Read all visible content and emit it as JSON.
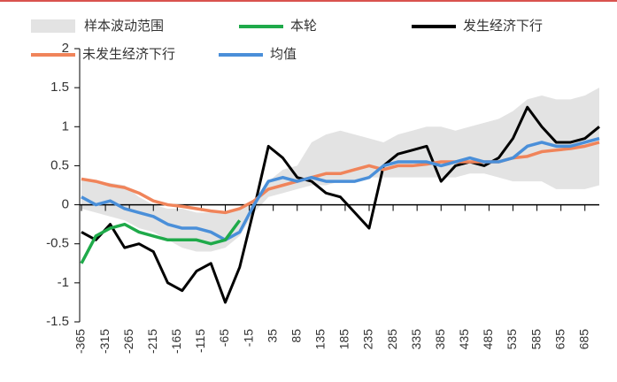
{
  "chart_data": {
    "type": "line",
    "x": [
      -365,
      -335,
      -305,
      -275,
      -245,
      -215,
      -185,
      -155,
      -125,
      -95,
      -65,
      -35,
      -5,
      25,
      55,
      85,
      115,
      145,
      175,
      205,
      235,
      265,
      295,
      325,
      355,
      385,
      415,
      445,
      475,
      505,
      535,
      565,
      595,
      625,
      655,
      685,
      715
    ],
    "band": {
      "name": "样本波动范围",
      "color": "#e3e3e3",
      "upper": [
        0.35,
        0.3,
        0.28,
        0.25,
        0.1,
        0.0,
        -0.05,
        -0.05,
        -0.1,
        -0.1,
        -0.1,
        -0.05,
        0.05,
        0.3,
        0.45,
        0.5,
        0.8,
        0.9,
        0.95,
        0.9,
        0.85,
        0.8,
        0.9,
        0.95,
        1.0,
        1.0,
        0.95,
        1.0,
        1.05,
        1.1,
        1.2,
        1.35,
        1.4,
        1.35,
        1.35,
        1.4,
        1.5
      ],
      "lower": [
        -0.05,
        -0.1,
        -0.15,
        -0.2,
        -0.3,
        -0.35,
        -0.45,
        -0.55,
        -0.6,
        -0.6,
        -0.55,
        -0.4,
        -0.1,
        0.1,
        0.15,
        0.2,
        0.25,
        0.25,
        0.3,
        0.3,
        0.35,
        0.35,
        0.35,
        0.35,
        0.35,
        0.35,
        0.35,
        0.4,
        0.4,
        0.35,
        0.3,
        0.3,
        0.3,
        0.2,
        0.2,
        0.2,
        0.25
      ]
    },
    "series": [
      {
        "name": "本轮",
        "color": "#1faa4a",
        "values": [
          -0.75,
          -0.4,
          -0.3,
          -0.25,
          -0.35,
          -0.4,
          -0.45,
          -0.45,
          -0.45,
          -0.5,
          -0.45,
          -0.2,
          null,
          null,
          null,
          null,
          null,
          null,
          null,
          null,
          null,
          null,
          null,
          null,
          null,
          null,
          null,
          null,
          null,
          null,
          null,
          null,
          null,
          null,
          null,
          null,
          null
        ]
      },
      {
        "name": "发生经济下行",
        "color": "#000000",
        "values": [
          -0.35,
          -0.45,
          -0.25,
          -0.55,
          -0.5,
          -0.6,
          -1.0,
          -1.1,
          -0.85,
          -0.75,
          -1.25,
          -0.8,
          -0.05,
          0.75,
          0.6,
          0.35,
          0.3,
          0.15,
          0.1,
          -0.1,
          -0.3,
          0.5,
          0.65,
          0.7,
          0.75,
          0.3,
          0.5,
          0.55,
          0.5,
          0.6,
          0.85,
          1.25,
          1.0,
          0.8,
          0.8,
          0.85,
          1.0
        ]
      },
      {
        "name": "未发生经济下行",
        "color": "#f0845a",
        "values": [
          0.33,
          0.3,
          0.25,
          0.22,
          0.15,
          0.05,
          0.0,
          -0.02,
          -0.05,
          -0.08,
          -0.1,
          -0.05,
          0.05,
          0.2,
          0.25,
          0.3,
          0.35,
          0.4,
          0.4,
          0.45,
          0.5,
          0.45,
          0.5,
          0.5,
          0.52,
          0.55,
          0.55,
          0.55,
          0.55,
          0.55,
          0.6,
          0.62,
          0.68,
          0.7,
          0.72,
          0.75,
          0.8
        ]
      },
      {
        "name": "均值",
        "color": "#4a8fd9",
        "values": [
          0.1,
          0.0,
          0.05,
          -0.05,
          -0.1,
          -0.15,
          -0.25,
          -0.3,
          -0.3,
          -0.35,
          -0.45,
          -0.35,
          0.0,
          0.3,
          0.35,
          0.3,
          0.35,
          0.3,
          0.3,
          0.3,
          0.35,
          0.5,
          0.55,
          0.55,
          0.55,
          0.5,
          0.55,
          0.6,
          0.55,
          0.55,
          0.6,
          0.75,
          0.8,
          0.75,
          0.75,
          0.8,
          0.85
        ]
      }
    ],
    "xlim": [
      -365,
      715
    ],
    "ylim": [
      -1.5,
      2
    ],
    "xticks": [
      -365,
      -315,
      -265,
      -215,
      -165,
      -115,
      -65,
      -15,
      35,
      85,
      135,
      185,
      235,
      285,
      335,
      385,
      435,
      485,
      535,
      585,
      635,
      685
    ],
    "yticks": [
      -1.5,
      -1,
      -0.5,
      0,
      0.5,
      1,
      1.5,
      2
    ]
  }
}
